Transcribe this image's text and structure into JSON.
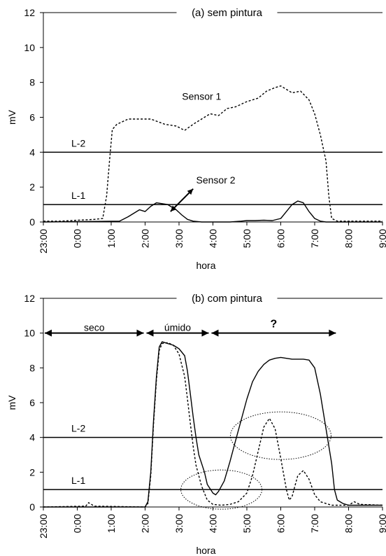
{
  "chart_data": [
    {
      "type": "line",
      "title": "(a) sem pintura",
      "xlabel": "hora",
      "ylabel": "mV",
      "ylim": [
        0,
        12
      ],
      "xlim_hours": [
        23,
        33
      ],
      "x_tick_labels": [
        "23:00",
        "0:00",
        "1:00",
        "2:00",
        "3:00",
        "4:00",
        "5:00",
        "6:00",
        "7:00",
        "8:00",
        "9:00"
      ],
      "y_ticks": [
        0,
        2,
        4,
        6,
        8,
        10,
        12
      ],
      "grid": false,
      "thresholds": [
        {
          "label": "L-2",
          "value": 4
        },
        {
          "label": "L-1",
          "value": 1
        }
      ],
      "series": [
        {
          "name": "Sensor 1",
          "style": "dashed",
          "x": [
            "23:00",
            "23:30",
            "0:00",
            "0:30",
            "0:45",
            "0:52",
            "0:57",
            "1:02",
            "1:10",
            "1:30",
            "1:50",
            "2:10",
            "2:35",
            "2:55",
            "3:10",
            "3:25",
            "3:40",
            "3:55",
            "4:10",
            "4:25",
            "4:40",
            "5:00",
            "5:20",
            "5:35",
            "5:50",
            "6:00",
            "6:10",
            "6:20",
            "6:35",
            "6:50",
            "7:00",
            "7:10",
            "7:20",
            "7:25",
            "7:30",
            "7:40",
            "8:00",
            "8:30",
            "9:00"
          ],
          "values": [
            0.05,
            0.05,
            0.1,
            0.15,
            0.2,
            1.5,
            3.5,
            5.3,
            5.6,
            5.9,
            5.9,
            5.9,
            5.6,
            5.5,
            5.25,
            5.6,
            5.9,
            6.2,
            6.1,
            6.5,
            6.6,
            6.9,
            7.1,
            7.5,
            7.7,
            7.8,
            7.6,
            7.4,
            7.5,
            7.0,
            6.2,
            5.0,
            3.5,
            1.5,
            0.2,
            0.05,
            0.05,
            0.05,
            0.05
          ]
        },
        {
          "name": "Sensor 2",
          "style": "solid",
          "x": [
            "23:00",
            "1:15",
            "1:30",
            "1:50",
            "2:00",
            "2:10",
            "2:20",
            "2:40",
            "2:55",
            "3:05",
            "3:15",
            "3:25",
            "3:40",
            "4:00",
            "4:30",
            "4:50",
            "5:00",
            "5:15",
            "5:30",
            "5:45",
            "6:00",
            "6:10",
            "6:20",
            "6:30",
            "6:40",
            "6:50",
            "7:00",
            "7:10",
            "7:20",
            "9:00"
          ],
          "values": [
            0,
            0.05,
            0.3,
            0.7,
            0.6,
            0.9,
            1.1,
            1.0,
            0.7,
            0.4,
            0.15,
            0.05,
            0,
            0,
            0,
            0.05,
            0.08,
            0.08,
            0.1,
            0.08,
            0.2,
            0.6,
            1.0,
            1.2,
            1.1,
            0.6,
            0.2,
            0.05,
            0,
            0
          ]
        }
      ],
      "annotations": [
        {
          "text": "Sensor 1",
          "label": "Sensor 1"
        },
        {
          "text": "Sensor 2",
          "label": "Sensor 2",
          "arrow": true
        }
      ]
    },
    {
      "type": "line",
      "title": "(b) com pintura",
      "xlabel": "hora",
      "ylabel": "mV",
      "ylim": [
        0,
        12
      ],
      "xlim_hours": [
        23,
        33
      ],
      "x_tick_labels": [
        "23:00",
        "0:00",
        "1:00",
        "2:00",
        "3:00",
        "4:00",
        "5:00",
        "6:00",
        "7:00",
        "8:00",
        "9:00"
      ],
      "y_ticks": [
        0,
        2,
        4,
        6,
        8,
        10,
        12
      ],
      "grid": false,
      "thresholds": [
        {
          "label": "L-2",
          "value": 4
        },
        {
          "label": "L-1",
          "value": 1
        }
      ],
      "series": [
        {
          "style": "solid",
          "x": [
            "23:00",
            "2:00",
            "2:05",
            "2:10",
            "2:15",
            "2:20",
            "2:25",
            "2:30",
            "2:40",
            "2:50",
            "3:00",
            "3:10",
            "3:15",
            "3:20",
            "3:25",
            "3:30",
            "3:35",
            "3:45",
            "3:50",
            "4:00",
            "4:05",
            "4:10",
            "4:20",
            "4:30",
            "4:40",
            "4:50",
            "5:00",
            "5:10",
            "5:20",
            "5:30",
            "5:40",
            "5:50",
            "6:00",
            "6:10",
            "6:20",
            "6:30",
            "6:40",
            "6:50",
            "7:00",
            "7:10",
            "7:20",
            "7:30",
            "7:35",
            "7:40",
            "7:50",
            "8:00",
            "9:00"
          ],
          "values": [
            0,
            0,
            0.3,
            2.0,
            5.0,
            7.5,
            9.2,
            9.5,
            9.4,
            9.3,
            9.1,
            8.7,
            7.8,
            6.5,
            5.2,
            4.0,
            3.0,
            2.0,
            1.3,
            0.8,
            0.7,
            0.9,
            1.5,
            2.6,
            3.8,
            5.0,
            6.2,
            7.2,
            7.8,
            8.2,
            8.45,
            8.55,
            8.6,
            8.55,
            8.5,
            8.5,
            8.5,
            8.45,
            8.0,
            6.5,
            4.5,
            2.5,
            1.0,
            0.4,
            0.2,
            0.1,
            0.1
          ]
        },
        {
          "style": "dashed",
          "x": [
            "23:00",
            "0:15",
            "0:20",
            "0:30",
            "2:00",
            "2:05",
            "2:10",
            "2:15",
            "2:20",
            "2:25",
            "2:30",
            "2:40",
            "2:50",
            "3:00",
            "3:10",
            "3:15",
            "3:20",
            "3:25",
            "3:30",
            "3:40",
            "3:50",
            "4:00",
            "4:15",
            "4:30",
            "4:45",
            "5:00",
            "5:10",
            "5:20",
            "5:30",
            "5:40",
            "5:50",
            "6:00",
            "6:10",
            "6:15",
            "6:20",
            "6:25",
            "6:30",
            "6:40",
            "6:50",
            "7:00",
            "7:10",
            "7:30",
            "8:00",
            "8:10",
            "8:20",
            "9:00"
          ],
          "values": [
            0,
            0.05,
            0.25,
            0.05,
            0,
            0.2,
            1.8,
            4.8,
            7.3,
            9.0,
            9.4,
            9.45,
            9.3,
            8.8,
            7.5,
            6.2,
            4.8,
            3.5,
            2.4,
            1.2,
            0.4,
            0.15,
            0.1,
            0.15,
            0.3,
            0.8,
            1.8,
            3.2,
            4.6,
            5.1,
            4.5,
            2.8,
            1.0,
            0.4,
            0.6,
            1.2,
            1.8,
            2.1,
            1.6,
            0.7,
            0.3,
            0.1,
            0.1,
            0.3,
            0.15,
            0.1
          ]
        }
      ],
      "annotations": [
        {
          "text": "seco",
          "label": "seco",
          "from": "23:00",
          "to": "2:00",
          "arrow": "double",
          "y": 10
        },
        {
          "text": "úmido",
          "label": "úmido",
          "from": "2:00",
          "to": "3:55",
          "arrow": "double",
          "y": 10
        },
        {
          "text": "?",
          "label": "?",
          "from": "3:55",
          "to": "7:40",
          "arrow": "double",
          "y": 10
        },
        {
          "shape": "ellipse",
          "center_x": "4:15",
          "center_y": 1.0
        },
        {
          "shape": "ellipse",
          "center_x": "6:00",
          "center_y": 4.1
        }
      ]
    }
  ]
}
